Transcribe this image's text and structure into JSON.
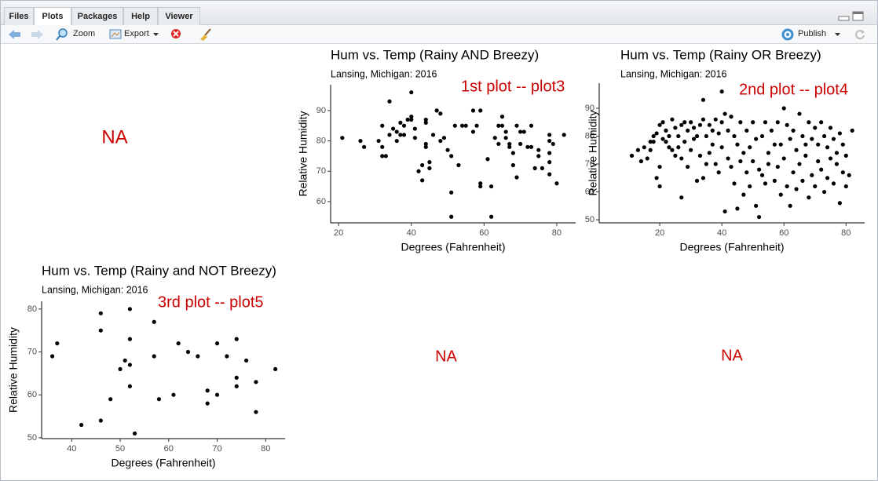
{
  "tabs": [
    "Files",
    "Plots",
    "Packages",
    "Help",
    "Viewer"
  ],
  "toolbar": {
    "zoom": "Zoom",
    "export": "Export",
    "publish": "Publish"
  },
  "na_labels": [
    "NA",
    "NA",
    "NA"
  ],
  "chart_data": [
    {
      "type": "scatter",
      "title": "Hum vs. Temp (Rainy AND Breezy)",
      "subtitle": "Lansing, Michigan: 2016",
      "annotation": "1st plot -- plot3",
      "x_label": "Degrees (Fahrenheit)",
      "y_label": "Relative Humidity",
      "color": "#000000",
      "x": [
        21,
        26,
        27,
        31,
        32,
        32,
        32,
        33,
        34,
        34,
        35,
        36,
        36,
        37,
        37,
        38,
        38,
        39,
        40,
        40,
        40,
        41,
        41,
        42,
        43,
        43,
        44,
        44,
        44,
        44,
        45,
        45,
        46,
        47,
        48,
        48,
        49,
        50,
        51,
        51,
        51,
        52,
        53,
        54,
        55,
        57,
        57,
        58,
        59,
        59,
        59,
        61,
        62,
        62,
        63,
        64,
        64,
        65,
        65,
        66,
        66,
        67,
        67,
        68,
        68,
        69,
        69,
        70,
        70,
        71,
        72,
        73,
        73,
        74,
        75,
        75,
        76,
        78,
        78,
        78,
        78,
        78,
        79,
        80,
        82
      ],
      "values": [
        81,
        80,
        78,
        80,
        85,
        78,
        75,
        75,
        93,
        82,
        84,
        80,
        83,
        86,
        82,
        85,
        82,
        87,
        96,
        88,
        87,
        84,
        81,
        70,
        67,
        72,
        87,
        86,
        79,
        78,
        71,
        73,
        82,
        90,
        89,
        80,
        81,
        77,
        63,
        55,
        75,
        85,
        72,
        85,
        85,
        83,
        90,
        85,
        90,
        66,
        65,
        74,
        55,
        65,
        81,
        85,
        79,
        88,
        85,
        83,
        81,
        78,
        79,
        72,
        76,
        85,
        68,
        83,
        79,
        83,
        78,
        78,
        85,
        71,
        77,
        75,
        71,
        82,
        80,
        76,
        73,
        69,
        79,
        66,
        82
      ],
      "xlim": [
        17.8,
        85.2
      ],
      "ylim": [
        53,
        98.5
      ],
      "xticks": [
        20,
        40,
        60,
        80
      ],
      "yticks": [
        60,
        70,
        80,
        90
      ]
    },
    {
      "type": "scatter",
      "title": "Hum vs. Temp (Rainy OR Breezy)",
      "subtitle": "Lansing, Michigan: 2016",
      "annotation": "2nd plot -- plot4",
      "x_label": "Degrees (Fahrenheit)",
      "y_label": "Relative Humidity",
      "color": "#000000",
      "x": [
        11,
        13,
        14,
        15,
        16,
        17,
        17,
        18,
        18,
        19,
        19,
        20,
        20,
        20,
        21,
        21,
        22,
        22,
        23,
        23,
        24,
        24,
        25,
        25,
        26,
        26,
        27,
        27,
        27,
        28,
        28,
        29,
        29,
        30,
        30,
        31,
        31,
        32,
        32,
        33,
        33,
        34,
        34,
        34,
        35,
        35,
        36,
        36,
        37,
        37,
        38,
        38,
        39,
        39,
        40,
        40,
        40,
        41,
        41,
        42,
        42,
        43,
        43,
        44,
        44,
        45,
        45,
        46,
        46,
        47,
        47,
        48,
        48,
        49,
        49,
        50,
        50,
        51,
        51,
        52,
        52,
        53,
        53,
        54,
        54,
        55,
        55,
        56,
        57,
        57,
        58,
        58,
        59,
        59,
        60,
        60,
        61,
        61,
        62,
        62,
        63,
        63,
        64,
        64,
        65,
        65,
        66,
        66,
        67,
        67,
        68,
        68,
        69,
        69,
        70,
        70,
        71,
        71,
        72,
        72,
        73,
        73,
        74,
        74,
        75,
        75,
        76,
        76,
        77,
        77,
        78,
        78,
        79,
        79,
        80,
        80,
        81,
        82
      ],
      "values": [
        73,
        75,
        71,
        76,
        72,
        78,
        75,
        80,
        78,
        65,
        81,
        62,
        69,
        84,
        79,
        85,
        82,
        78,
        76,
        80,
        86,
        75,
        83,
        73,
        80,
        76,
        84,
        72,
        58,
        85,
        78,
        82,
        69,
        85,
        75,
        83,
        79,
        80,
        64,
        84,
        73,
        93,
        86,
        65,
        80,
        70,
        84,
        74,
        82,
        77,
        86,
        70,
        81,
        67,
        96,
        85,
        76,
        88,
        53,
        82,
        72,
        87,
        69,
        80,
        63,
        77,
        54,
        85,
        71,
        74,
        59,
        82,
        67,
        76,
        62,
        85,
        71,
        79,
        55,
        68,
        51,
        80,
        66,
        85,
        63,
        74,
        70,
        82,
        77,
        64,
        85,
        69,
        77,
        59,
        90,
        72,
        84,
        62,
        79,
        55,
        82,
        67,
        75,
        61,
        88,
        70,
        80,
        64,
        77,
        73,
        85,
        58,
        79,
        66,
        83,
        62,
        77,
        71,
        85,
        68,
        80,
        60,
        76,
        65,
        83,
        72,
        79,
        63,
        74,
        70,
        81,
        56,
        77,
        67,
        73,
        62,
        66,
        82
      ],
      "xlim": [
        0.5,
        86
      ],
      "ylim": [
        48.9,
        99
      ],
      "xticks": [
        20,
        40,
        60,
        80
      ],
      "yticks": [
        50,
        60,
        70,
        80,
        90
      ]
    },
    {
      "type": "scatter",
      "title": "Hum vs. Temp (Rainy and NOT Breezy)",
      "subtitle": "Lansing, Michigan: 2016",
      "annotation": "3rd plot -- plot5",
      "x_label": "Degrees (Fahrenheit)",
      "y_label": "Relative Humidity",
      "color": "#000000",
      "x": [
        36,
        37,
        42,
        46,
        46,
        46,
        48,
        50,
        51,
        52,
        52,
        52,
        52,
        53,
        57,
        57,
        58,
        61,
        62,
        64,
        66,
        68,
        68,
        70,
        70,
        72,
        74,
        74,
        74,
        76,
        78,
        78,
        82
      ],
      "values": [
        69,
        72,
        53,
        79,
        75,
        54,
        59,
        66,
        68,
        80,
        73,
        67,
        62,
        51,
        77,
        69,
        59,
        60,
        72,
        70,
        69,
        61,
        58,
        72,
        60,
        69,
        73,
        64,
        62,
        68,
        63,
        56,
        66
      ],
      "xlim": [
        33.8,
        84
      ],
      "ylim": [
        49.8,
        81.8
      ],
      "xticks": [
        40,
        50,
        60,
        70,
        80
      ],
      "yticks": [
        50,
        60,
        70,
        80
      ]
    }
  ]
}
